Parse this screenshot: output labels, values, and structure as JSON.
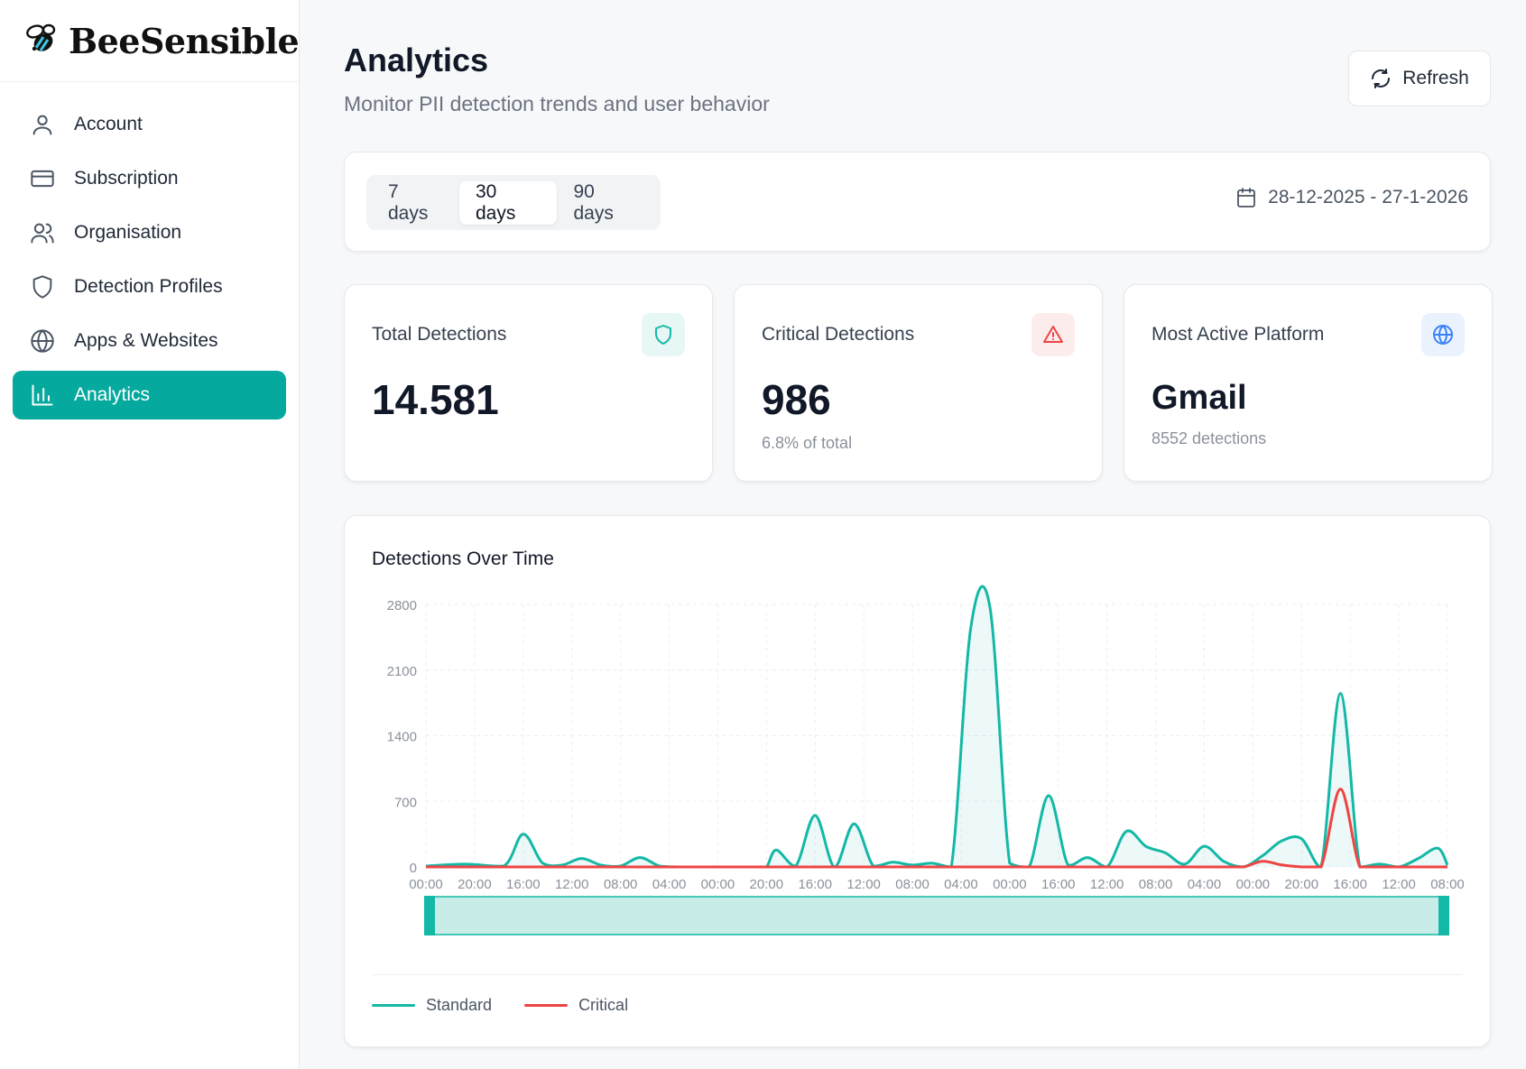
{
  "brand": {
    "name": "BeeSensible",
    "logo_icon": "bee-icon"
  },
  "sidebar": {
    "items": [
      {
        "label": "Account",
        "icon": "user-icon",
        "active": false
      },
      {
        "label": "Subscription",
        "icon": "credit-card-icon",
        "active": false
      },
      {
        "label": "Organisation",
        "icon": "users-icon",
        "active": false
      },
      {
        "label": "Detection Profiles",
        "icon": "shield-icon",
        "active": false
      },
      {
        "label": "Apps & Websites",
        "icon": "globe-icon",
        "active": false
      },
      {
        "label": "Analytics",
        "icon": "bar-chart-icon",
        "active": true
      }
    ]
  },
  "header": {
    "title": "Analytics",
    "subtitle": "Monitor PII detection trends and user behavior",
    "refresh_label": "Refresh"
  },
  "filters": {
    "ranges": [
      "7 days",
      "30 days",
      "90 days"
    ],
    "selected": "30 days",
    "date_range": "28-12-2025 - 27-1-2026"
  },
  "stats": {
    "total": {
      "title": "Total Detections",
      "value": "14.581",
      "icon": "shield-icon",
      "accent": "#14b8a6"
    },
    "critical": {
      "title": "Critical Detections",
      "value": "986",
      "note": "6.8% of total",
      "icon": "alert-triangle-icon",
      "accent": "#ef4444"
    },
    "platform": {
      "title": "Most Active Platform",
      "value": "Gmail",
      "note": "8552 detections",
      "icon": "globe-icon",
      "accent": "#3b82f6"
    }
  },
  "colors": {
    "primary": "#06a99d",
    "standard": "#14b8a6",
    "critical": "#ef4444"
  },
  "chart_data": {
    "type": "line",
    "title": "Detections Over Time",
    "ylim": [
      0,
      2800
    ],
    "yticks": [
      0,
      700,
      1400,
      2100,
      2800
    ],
    "x_ticks": [
      "00:00",
      "20:00",
      "16:00",
      "12:00",
      "08:00",
      "04:00",
      "00:00",
      "20:00",
      "16:00",
      "12:00",
      "08:00",
      "04:00",
      "00:00",
      "16:00",
      "12:00",
      "08:00",
      "04:00",
      "00:00",
      "20:00",
      "16:00",
      "12:00",
      "08:00"
    ],
    "x": [
      0,
      0.8,
      1.6,
      2,
      2.4,
      2.8,
      3.2,
      3.6,
      4.0,
      4.4,
      4.8,
      5.2,
      5.6,
      6.0,
      6.4,
      6.8,
      7.0,
      7.2,
      7.6,
      8.0,
      8.4,
      8.8,
      9.2,
      9.6,
      10.0,
      10.4,
      10.8,
      11.2,
      11.6,
      12.0,
      12.4,
      12.8,
      13.2,
      13.6,
      14.0,
      14.4,
      14.8,
      15.2,
      15.6,
      16.0,
      16.4,
      16.8,
      17.2,
      17.6,
      18.0,
      18.4,
      18.8,
      19.2,
      19.6,
      20.0,
      20.4,
      20.8,
      21.0
    ],
    "series": [
      {
        "name": "Standard",
        "values": [
          10,
          30,
          10,
          350,
          40,
          20,
          90,
          20,
          10,
          100,
          10,
          0,
          0,
          0,
          0,
          0,
          0,
          180,
          10,
          550,
          0,
          460,
          10,
          50,
          20,
          40,
          0,
          2550,
          2750,
          40,
          0,
          760,
          20,
          100,
          0,
          380,
          220,
          150,
          30,
          220,
          60,
          0,
          120,
          280,
          300,
          0,
          1850,
          0,
          30,
          0,
          90,
          200,
          20
        ]
      },
      {
        "name": "Critical",
        "values": [
          0,
          0,
          0,
          0,
          0,
          0,
          0,
          0,
          0,
          0,
          0,
          0,
          0,
          0,
          0,
          0,
          0,
          0,
          0,
          0,
          0,
          0,
          0,
          0,
          0,
          0,
          0,
          0,
          0,
          0,
          0,
          0,
          0,
          0,
          0,
          0,
          0,
          0,
          0,
          0,
          0,
          0,
          60,
          20,
          0,
          0,
          830,
          0,
          0,
          0,
          0,
          0,
          0
        ]
      }
    ],
    "legend": [
      "Standard",
      "Critical"
    ],
    "grid": true,
    "legend_position": "bottom-left"
  }
}
